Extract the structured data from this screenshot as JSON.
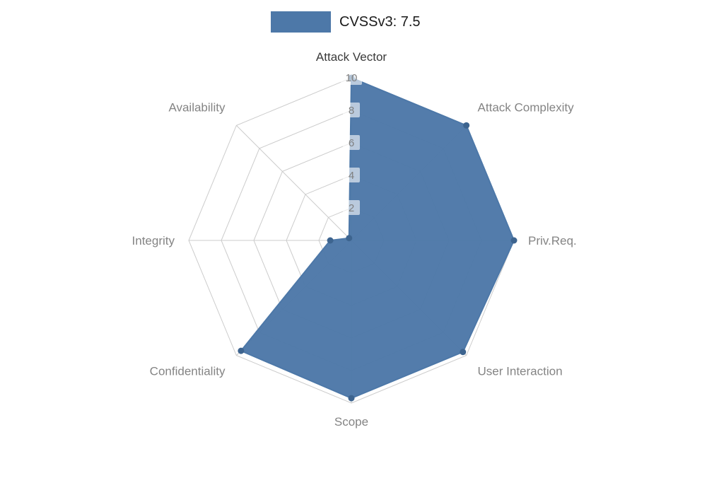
{
  "legend": {
    "label": "CVSSv3: 7.5"
  },
  "colors": {
    "fill": "#4d78a8",
    "marker": "#3d648f",
    "grid": "#cccccc",
    "axis_label": "#848484",
    "active_axis_label": "#3a3a3a",
    "tick_text": "#7f7f7f",
    "tick_bg": "#ffffff",
    "legend_text": "#1a1a1a"
  },
  "chart_data": {
    "type": "radar",
    "title": "CVSSv3: 7.5",
    "categories": [
      "Attack Vector",
      "Attack Complexity",
      "Priv.Req.",
      "User Interaction",
      "Scope",
      "Confidentiality",
      "Integrity",
      "Availability"
    ],
    "series": [
      {
        "name": "CVSSv3: 7.5",
        "values": [
          10,
          10,
          10,
          9.7,
          9.7,
          9.6,
          1.3,
          0.2
        ]
      }
    ],
    "radial_ticks": [
      2,
      4,
      6,
      8,
      10
    ],
    "range": [
      0,
      10
    ],
    "grid": true,
    "legend_position": "top-center"
  }
}
